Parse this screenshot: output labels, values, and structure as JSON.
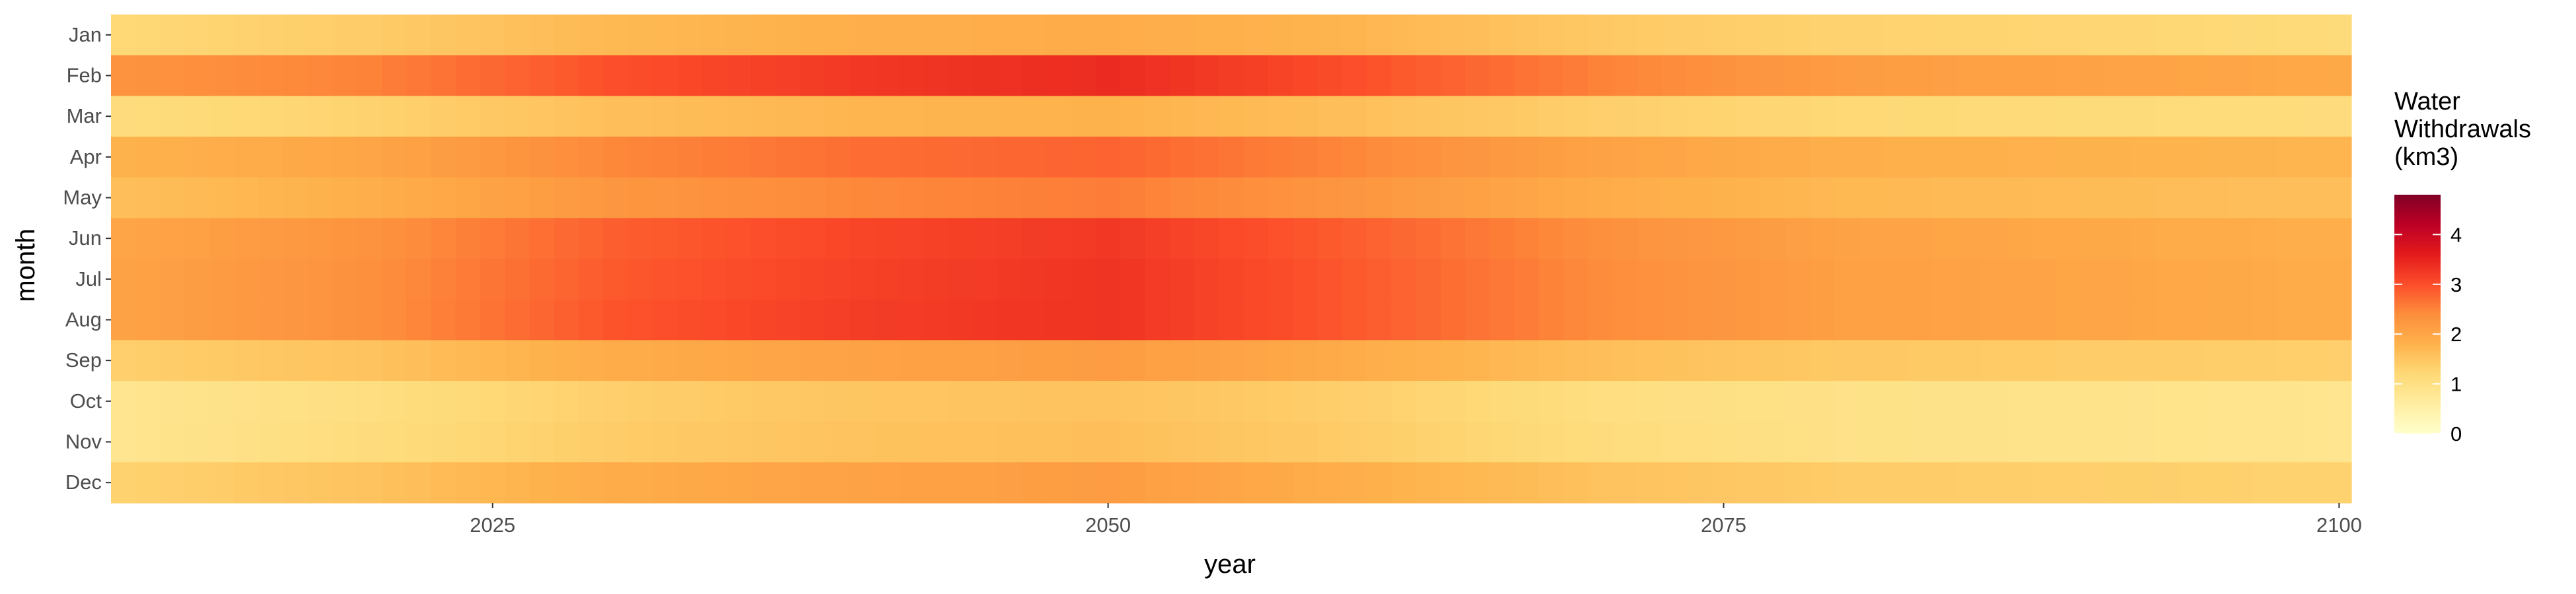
{
  "chart_data": {
    "type": "heatmap",
    "xlabel": "year",
    "ylabel": "month",
    "x_ticks": [
      2025,
      2050,
      2075,
      2100
    ],
    "xlim": [
      2010,
      2100
    ],
    "months": [
      "Jan",
      "Feb",
      "Mar",
      "Apr",
      "May",
      "Jun",
      "Jul",
      "Aug",
      "Sep",
      "Oct",
      "Nov",
      "Dec"
    ],
    "legend": {
      "title_lines": [
        "Water",
        "Withdrawals",
        "(km3)"
      ],
      "ticks": [
        0,
        1,
        2,
        3,
        4
      ],
      "range": [
        0,
        4.8
      ],
      "position": "right"
    },
    "colorscale": [
      {
        "v": 0.0,
        "color": "#ffffcc"
      },
      {
        "v": 0.6,
        "color": "#ffeda0"
      },
      {
        "v": 1.2,
        "color": "#fed976"
      },
      {
        "v": 1.8,
        "color": "#feb24c"
      },
      {
        "v": 2.4,
        "color": "#fd8d3c"
      },
      {
        "v": 3.0,
        "color": "#fc4e2a"
      },
      {
        "v": 3.6,
        "color": "#e31a1c"
      },
      {
        "v": 4.2,
        "color": "#bd0026"
      },
      {
        "v": 4.8,
        "color": "#800026"
      }
    ],
    "year_profile": {
      "years": [
        2010,
        2020,
        2030,
        2040,
        2050,
        2060,
        2070,
        2080,
        2090,
        2100
      ],
      "values": {
        "Jan": [
          1.2,
          1.4,
          1.7,
          1.85,
          1.9,
          1.75,
          1.45,
          1.3,
          1.25,
          1.15
        ],
        "Feb": [
          2.3,
          2.5,
          3.0,
          3.25,
          3.4,
          3.0,
          2.5,
          2.15,
          2.05,
          1.95
        ],
        "Mar": [
          1.1,
          1.3,
          1.6,
          1.75,
          1.8,
          1.6,
          1.35,
          1.2,
          1.15,
          1.1
        ],
        "Apr": [
          1.8,
          2.0,
          2.45,
          2.7,
          2.8,
          2.45,
          2.05,
          1.85,
          1.8,
          1.75
        ],
        "May": [
          1.6,
          1.85,
          2.25,
          2.45,
          2.55,
          2.25,
          1.9,
          1.7,
          1.65,
          1.6
        ],
        "Jun": [
          2.0,
          2.3,
          2.85,
          3.1,
          3.25,
          2.85,
          2.35,
          2.05,
          1.95,
          1.85
        ],
        "Jul": [
          2.05,
          2.35,
          2.9,
          3.15,
          3.3,
          2.9,
          2.4,
          2.1,
          2.0,
          1.9
        ],
        "Aug": [
          2.05,
          2.35,
          2.95,
          3.2,
          3.3,
          2.9,
          2.4,
          2.1,
          2.0,
          1.9
        ],
        "Sep": [
          1.35,
          1.55,
          1.9,
          2.05,
          2.15,
          1.9,
          1.6,
          1.45,
          1.4,
          1.35
        ],
        "Oct": [
          0.85,
          1.05,
          1.35,
          1.5,
          1.55,
          1.35,
          1.05,
          0.95,
          0.9,
          0.85
        ],
        "Nov": [
          0.85,
          1.1,
          1.4,
          1.55,
          1.6,
          1.4,
          1.1,
          0.95,
          0.9,
          0.85
        ],
        "Dec": [
          1.3,
          1.55,
          1.9,
          2.05,
          2.15,
          1.85,
          1.55,
          1.4,
          1.35,
          1.3
        ]
      }
    }
  }
}
